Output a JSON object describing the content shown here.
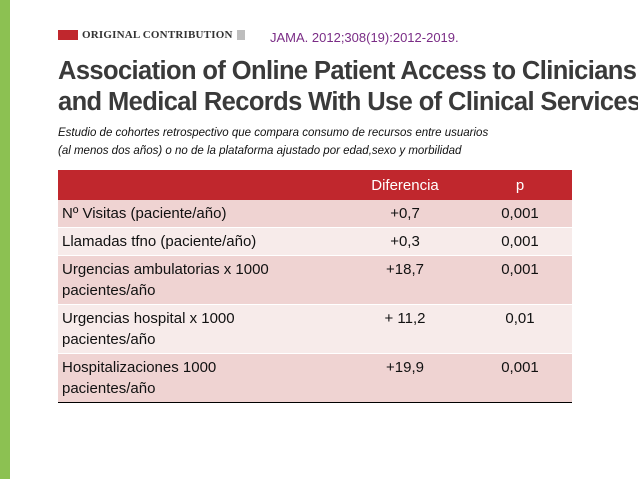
{
  "header": {
    "section_label": "ORIGINAL CONTRIBUTION",
    "citation": "JAMA. 2012;308(19):2012-2019.",
    "colors": {
      "accent_red": "#c0272d",
      "citation_purple": "#7a2c86",
      "left_bar_green": "#8cc152"
    }
  },
  "title": {
    "line1": "Association of Online Patient Access to Clinicians",
    "line2": "and Medical Records With Use of Clinical Services"
  },
  "subtitle": {
    "line1": "Estudio de cohortes retrospectivo que compara consumo de recursos entre usuarios",
    "line2": "(al menos dos años)  o no de la plataforma ajustado por edad,sexo y morbilidad"
  },
  "table": {
    "headers": [
      "",
      "Diferencia",
      "p"
    ],
    "rows": [
      {
        "label_line1": "Nº Visitas (paciente/año)",
        "label_line2": "",
        "diferencia": "+0,7",
        "p": "0,001"
      },
      {
        "label_line1": "Llamadas tfno (paciente/año)",
        "label_line2": "",
        "diferencia": "+0,3",
        "p": "0,001"
      },
      {
        "label_line1": "Urgencias  ambulatorias x 1000",
        "label_line2": "pacientes/año",
        "diferencia": "+18,7",
        "p": "0,001"
      },
      {
        "label_line1": "Urgencias hospital x 1000",
        "label_line2": "pacientes/año",
        "diferencia": "+ 11,2",
        "p": "0,01"
      },
      {
        "label_line1": "Hospitalizaciones 1000",
        "label_line2": "pacientes/año",
        "diferencia": "+19,9",
        "p": "0,001"
      }
    ]
  }
}
